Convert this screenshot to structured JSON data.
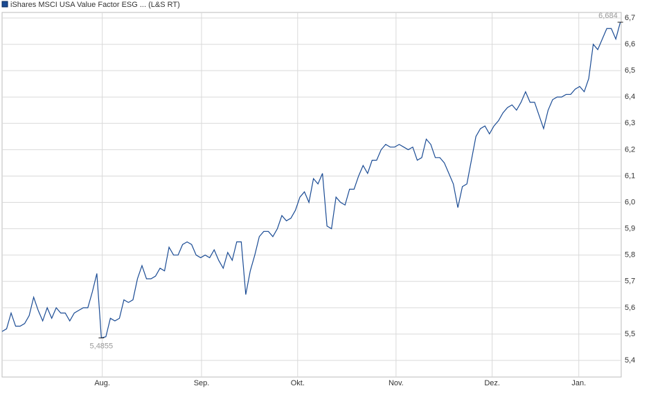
{
  "chart_data": {
    "type": "line",
    "title": "iShares MSCI USA Value Factor ESG ... (L&S RT)",
    "series": [
      {
        "name": "iShares MSCI USA Value Factor ESG ... (L&S RT)",
        "color": "#1a4b94",
        "values": [
          5.51,
          5.52,
          5.58,
          5.53,
          5.53,
          5.54,
          5.57,
          5.64,
          5.59,
          5.55,
          5.6,
          5.56,
          5.6,
          5.58,
          5.58,
          5.55,
          5.58,
          5.59,
          5.6,
          5.6,
          5.66,
          5.73,
          5.4855,
          5.49,
          5.56,
          5.55,
          5.56,
          5.63,
          5.62,
          5.63,
          5.71,
          5.76,
          5.71,
          5.71,
          5.72,
          5.75,
          5.74,
          5.83,
          5.8,
          5.8,
          5.84,
          5.85,
          5.84,
          5.8,
          5.79,
          5.8,
          5.79,
          5.82,
          5.78,
          5.75,
          5.81,
          5.78,
          5.85,
          5.85,
          5.65,
          5.74,
          5.8,
          5.87,
          5.89,
          5.89,
          5.87,
          5.9,
          5.95,
          5.93,
          5.94,
          5.97,
          6.02,
          6.04,
          6.0,
          6.09,
          6.07,
          6.11,
          5.91,
          5.9,
          6.02,
          6.0,
          5.99,
          6.05,
          6.05,
          6.1,
          6.14,
          6.11,
          6.16,
          6.16,
          6.2,
          6.22,
          6.21,
          6.21,
          6.22,
          6.21,
          6.2,
          6.21,
          6.16,
          6.17,
          6.24,
          6.22,
          6.17,
          6.17,
          6.15,
          6.11,
          6.07,
          5.98,
          6.06,
          6.07,
          6.16,
          6.25,
          6.28,
          6.29,
          6.26,
          6.29,
          6.31,
          6.34,
          6.36,
          6.37,
          6.35,
          6.38,
          6.42,
          6.38,
          6.38,
          6.33,
          6.28,
          6.35,
          6.39,
          6.4,
          6.4,
          6.41,
          6.41,
          6.43,
          6.44,
          6.42,
          6.47,
          6.6,
          6.58,
          6.62,
          6.66,
          6.66,
          6.62,
          6.684
        ]
      }
    ],
    "xlim": [
      0,
      137.2
    ],
    "xticks": [
      {
        "value": 22.2,
        "label": "Aug."
      },
      {
        "value": 44.2,
        "label": "Sep."
      },
      {
        "value": 65.5,
        "label": "Okt."
      },
      {
        "value": 87.3,
        "label": "Nov."
      },
      {
        "value": 108.6,
        "label": "Dez."
      },
      {
        "value": 127.8,
        "label": "Jan."
      }
    ],
    "ylim": [
      5.337,
      6.721
    ],
    "yticks": [
      {
        "value": 5.4,
        "label": "5,4"
      },
      {
        "value": 5.5,
        "label": "5,5"
      },
      {
        "value": 5.6,
        "label": "5,6"
      },
      {
        "value": 5.7,
        "label": "5,7"
      },
      {
        "value": 5.8,
        "label": "5,8"
      },
      {
        "value": 5.9,
        "label": "5,9"
      },
      {
        "value": 6.0,
        "label": "6,0"
      },
      {
        "value": 6.1,
        "label": "6,1"
      },
      {
        "value": 6.2,
        "label": "6,2"
      },
      {
        "value": 6.3,
        "label": "6,3"
      },
      {
        "value": 6.4,
        "label": "6,4"
      },
      {
        "value": 6.5,
        "label": "6,5"
      },
      {
        "value": 6.6,
        "label": "6,6"
      },
      {
        "value": 6.7,
        "label": "6,7"
      }
    ],
    "grid": true,
    "annotations": [
      {
        "x": 137,
        "value": 6.684,
        "label": "6,684",
        "position": "above-left"
      },
      {
        "x": 22,
        "value": 5.4855,
        "label": "5,4855",
        "position": "below"
      }
    ]
  }
}
